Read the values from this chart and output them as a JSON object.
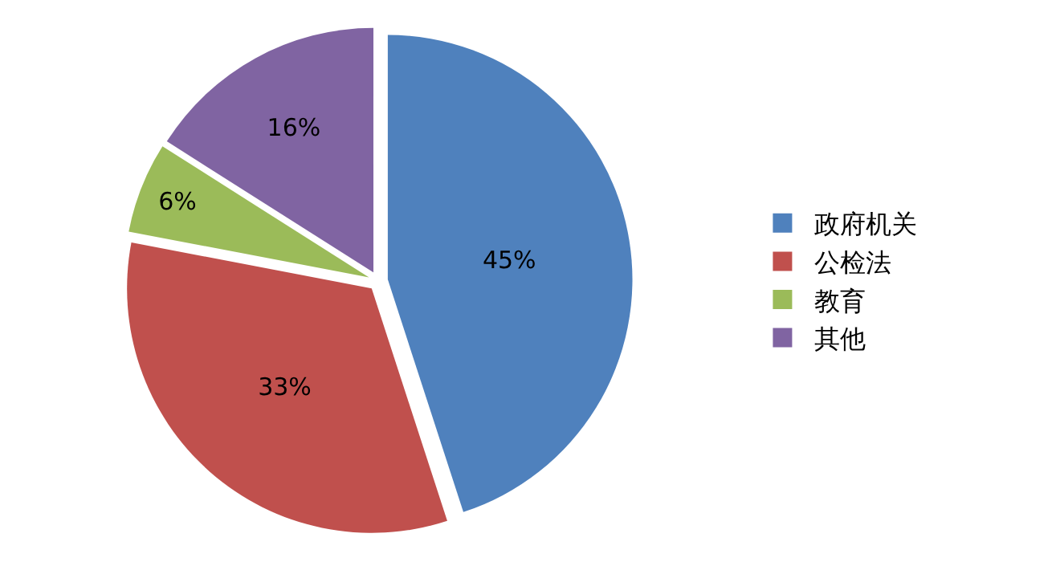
{
  "chart_data": {
    "type": "pie",
    "categories": [
      "政府机关",
      "公检法",
      "教育",
      "其他"
    ],
    "values": [
      45,
      33,
      6,
      16
    ],
    "colors": [
      "#4f81bd",
      "#c0504d",
      "#9bbb59",
      "#8064a2"
    ],
    "value_labels": [
      "45%",
      "33%",
      "6%",
      "16%"
    ],
    "legend": "right"
  }
}
